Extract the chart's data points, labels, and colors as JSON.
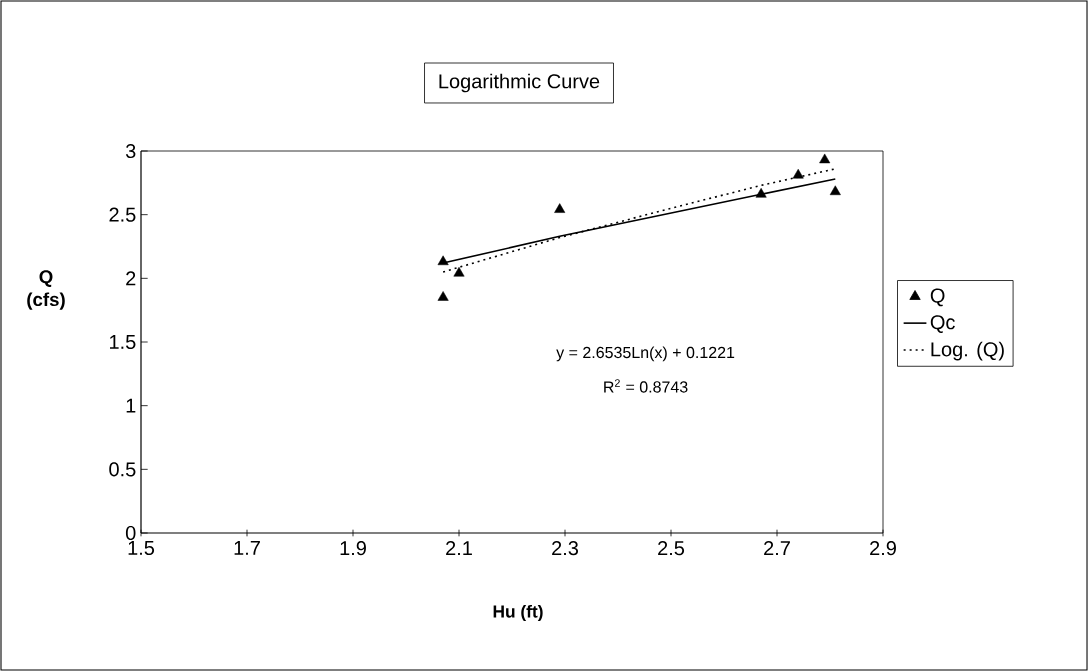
{
  "chart_data": {
    "type": "scatter",
    "title": "Logarithmic Curve",
    "xlabel": "Hu (ft)",
    "ylabel": "Q (cfs)",
    "xlim": [
      1.5,
      2.9
    ],
    "xticks": [
      1.5,
      1.7,
      1.9,
      2.1,
      2.3,
      2.5,
      2.7,
      2.9
    ],
    "ylim": [
      0,
      3
    ],
    "yticks": [
      0,
      0.5,
      1,
      1.5,
      2,
      2.5,
      3
    ],
    "legend": "right",
    "annotations": [
      "y = 2.6535Ln(x) + 0.1221",
      "R$^{2}$ = 0.8743"
    ],
    "series": [
      {
        "name": "Q",
        "type": "scatter",
        "marker": "triangle",
        "color": "#000000",
        "x": [
          2.07,
          2.1,
          2.07,
          2.29,
          2.67,
          2.74,
          2.79,
          2.81
        ],
        "values": [
          2.13,
          2.04,
          1.85,
          2.54,
          2.66,
          2.81,
          2.93,
          2.68
        ]
      },
      {
        "name": "Qc",
        "type": "line",
        "marker": "none",
        "line_style": "solid",
        "color": "#000000",
        "x": [
          2.07,
          2.29,
          2.67,
          2.81
        ],
        "values": [
          2.12,
          2.33,
          2.66,
          2.78
        ]
      },
      {
        "name": "Log. (Q)",
        "type": "line",
        "marker": "none",
        "line_style": "dotted",
        "color": "#000000",
        "x": [
          2.07,
          2.29,
          2.5,
          2.67,
          2.81
        ],
        "values": [
          2.05,
          2.32,
          2.55,
          2.73,
          2.86
        ]
      }
    ]
  }
}
